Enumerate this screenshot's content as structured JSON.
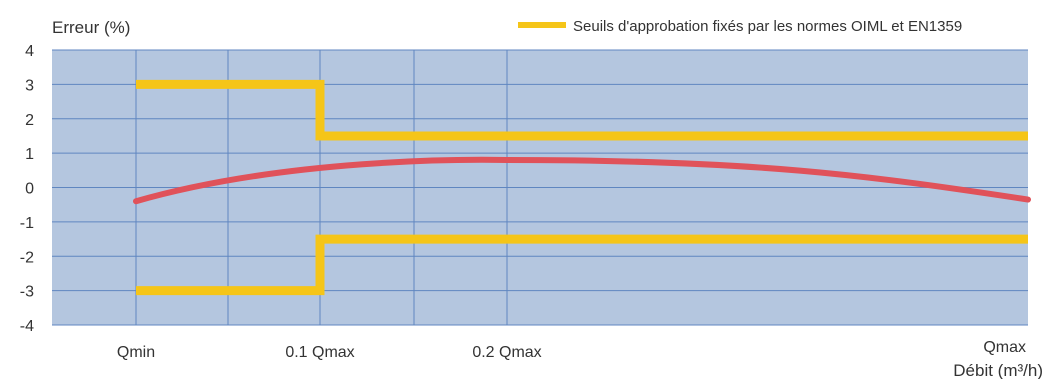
{
  "chart_data": {
    "type": "line",
    "ylabel": "Erreur (%)",
    "xlabel": "Débit (m³/h)",
    "ylim": [
      -4,
      4
    ],
    "yticks": [
      "4",
      "3",
      "2",
      "1",
      "0",
      "-1",
      "-2",
      "-3",
      "-4"
    ],
    "xticks": [
      "Qmin",
      "0.1 Qmax",
      "0.2 Qmax",
      "Qmax"
    ],
    "grid": true,
    "legend": {
      "position": "top-right",
      "label": "Seuils d'approbation fixés par les normes OIML et EN1359"
    },
    "series": [
      {
        "name": "Seuils d'approbation fixés par les normes OIML et EN1359",
        "type": "step",
        "upper": [
          {
            "x": "Qmin",
            "y": 3
          },
          {
            "x": "0.1 Qmax",
            "y": 3
          },
          {
            "x": "0.1 Qmax",
            "y": 1.5
          },
          {
            "x": "Qmax",
            "y": 1.5
          }
        ],
        "lower": [
          {
            "x": "Qmin",
            "y": -3
          },
          {
            "x": "0.1 Qmax",
            "y": -3
          },
          {
            "x": "0.1 Qmax",
            "y": -1.5
          },
          {
            "x": "Qmax",
            "y": -1.5
          }
        ]
      },
      {
        "type": "curve",
        "points": [
          {
            "x": "Qmin",
            "y": -0.4
          },
          {
            "x": "0.1 Qmax",
            "y": 0.55
          },
          {
            "x": "0.2 Qmax",
            "y": 0.8
          },
          {
            "x": "Qmax",
            "y": -0.35
          }
        ]
      }
    ]
  },
  "colors": {
    "plot_bg": "#b4c6df",
    "grid": "#5f86c0",
    "threshold": "#f5c518",
    "curve": "#e0525a"
  }
}
